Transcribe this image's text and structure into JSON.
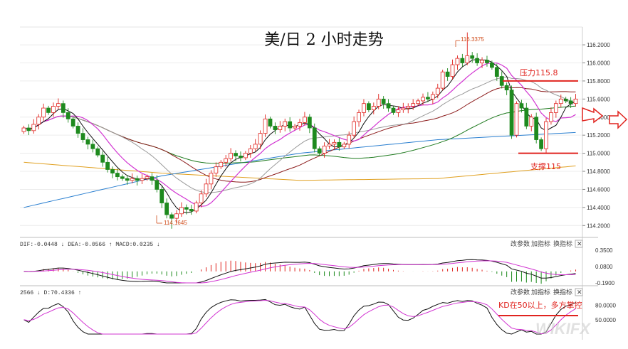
{
  "title": "美/日 2 小时走势",
  "colors": {
    "up": "#e0241f",
    "down": "#1e8a1e",
    "ma5": "#111111",
    "ma10": "#d234d2",
    "ma20": "#9a9a9a",
    "ma30": "#8b1a1a",
    "ma60": "#1e7a1e",
    "ma120": "#2a7fd0",
    "ma250": "#e0a020",
    "resistance": "#e0241f",
    "support": "#e0241f"
  },
  "chart_data": {
    "type": "candlestick",
    "title": "美/日 2 小时走势",
    "ylim": [
      114.1,
      116.35
    ],
    "y_ticks": [
      "116.2000",
      "116.0000",
      "115.8000",
      "115.6000",
      "115.4000",
      "115.2000",
      "115.0000",
      "114.8000",
      "114.6000",
      "114.4000",
      "114.2000"
    ],
    "y_tick_values": [
      116.2,
      116.0,
      115.8,
      115.6,
      115.4,
      115.2,
      115.0,
      114.8,
      114.6,
      114.4,
      114.2
    ],
    "high_label": "116.3375",
    "high_value": 116.3375,
    "low_label": "114.1645",
    "low_value": 114.1645,
    "closes": [
      115.28,
      115.25,
      115.32,
      115.4,
      115.5,
      115.45,
      115.52,
      115.55,
      115.45,
      115.38,
      115.3,
      115.22,
      115.15,
      115.1,
      115.05,
      114.98,
      114.9,
      114.82,
      114.78,
      114.74,
      114.72,
      114.7,
      114.72,
      114.7,
      114.72,
      114.74,
      114.7,
      114.6,
      114.45,
      114.32,
      114.28,
      114.33,
      114.4,
      114.38,
      114.36,
      114.45,
      114.55,
      114.66,
      114.78,
      114.85,
      114.9,
      114.94,
      115.0,
      114.97,
      114.95,
      115.0,
      115.05,
      115.1,
      115.22,
      115.38,
      115.3,
      115.26,
      115.3,
      115.35,
      115.28,
      115.3,
      115.34,
      115.4,
      115.28,
      115.05,
      115.0,
      115.08,
      115.1,
      115.12,
      115.07,
      115.1,
      115.2,
      115.35,
      115.45,
      115.55,
      115.48,
      115.52,
      115.6,
      115.55,
      115.5,
      115.45,
      115.48,
      115.5,
      115.52,
      115.55,
      115.58,
      115.62,
      115.6,
      115.65,
      115.72,
      115.9,
      115.85,
      115.98,
      116.05,
      116.0,
      116.08,
      116.05,
      116.0,
      116.03,
      116.0,
      115.95,
      115.85,
      115.75,
      115.7,
      115.2,
      115.55,
      115.5,
      115.3,
      115.4,
      115.15,
      115.05,
      115.35,
      115.45,
      115.55,
      115.6,
      115.58,
      115.55,
      115.6
    ],
    "ma120": [
      114.4,
      114.75,
      115.0,
      115.15,
      115.23
    ],
    "ma250": [
      114.9,
      114.78,
      114.7,
      114.72,
      114.86
    ],
    "resistance": {
      "label": "压力115.8",
      "value": 115.8
    },
    "support": {
      "label": "支撑115",
      "value": 115.0
    },
    "macd": {
      "label": "DIF:-0.0448 ↓ DEA:-0.0566 ↑ MACD:0.0235 ↓",
      "y_ticks": [
        "0.3500",
        "0.0800",
        "-0.1900"
      ],
      "y_tick_values": [
        0.35,
        0.08,
        -0.19
      ]
    },
    "kd": {
      "label": "2566 ↓ D:70.4336 ↑",
      "y_ticks": [
        "80.0000",
        "50.0000"
      ],
      "y_tick_values": [
        80,
        50
      ],
      "annotation": "KD在50以上，多方掌控"
    }
  },
  "controls": {
    "params": "改参数",
    "add_indicator": "加指标",
    "switch_indicator": "换指标",
    "close": "✕"
  },
  "watermark": "WIKIFX"
}
